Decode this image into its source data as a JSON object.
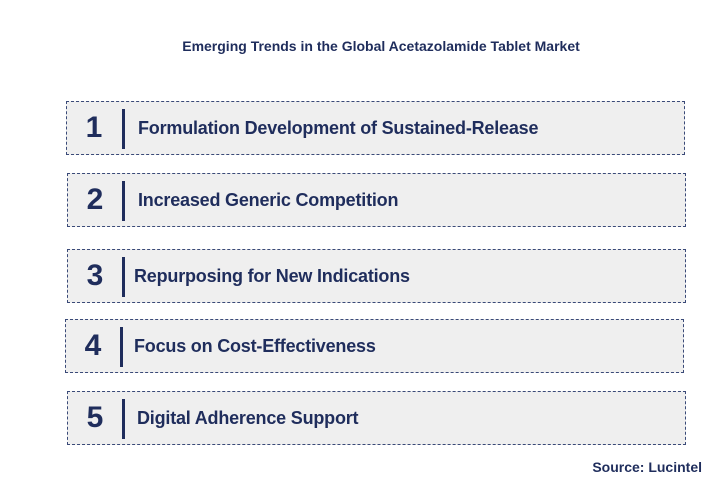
{
  "title": "Emerging Trends in the Global Acetazolamide Tablet Market",
  "trends": [
    {
      "number": "1",
      "label": "Formulation Development of Sustained-Release"
    },
    {
      "number": "2",
      "label": "Increased Generic Competition"
    },
    {
      "number": "3",
      "label": "Repurposing for New Indications"
    },
    {
      "number": "4",
      "label": "Focus on Cost-Effectiveness"
    },
    {
      "number": "5",
      "label": "Digital Adherence Support"
    }
  ],
  "source": "Source: Lucintel",
  "colors": {
    "text": "#1f2d5c",
    "box_background": "#efefef",
    "box_border": "#3a4a78"
  }
}
